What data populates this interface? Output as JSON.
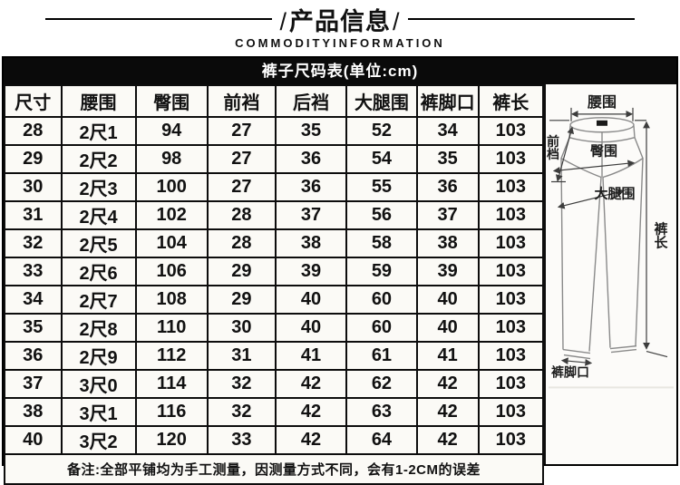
{
  "banner": {
    "slash": "/",
    "title": "产品信息",
    "subtitle": "COMMODITYINFORMATION"
  },
  "size_table": {
    "title": "裤子尺码表(单位:cm)",
    "columns": [
      "尺寸",
      "腰围",
      "臀围",
      "前裆",
      "后裆",
      "大腿围",
      "裤脚口",
      "裤长"
    ],
    "rows": [
      [
        "28",
        "2尺1",
        "94",
        "27",
        "35",
        "52",
        "34",
        "103"
      ],
      [
        "29",
        "2尺2",
        "98",
        "27",
        "36",
        "54",
        "35",
        "103"
      ],
      [
        "30",
        "2尺3",
        "100",
        "27",
        "36",
        "55",
        "36",
        "103"
      ],
      [
        "31",
        "2尺4",
        "102",
        "28",
        "37",
        "56",
        "37",
        "103"
      ],
      [
        "32",
        "2尺5",
        "104",
        "28",
        "38",
        "58",
        "38",
        "103"
      ],
      [
        "33",
        "2尺6",
        "106",
        "29",
        "39",
        "59",
        "39",
        "103"
      ],
      [
        "34",
        "2尺7",
        "108",
        "29",
        "40",
        "60",
        "40",
        "103"
      ],
      [
        "35",
        "2尺8",
        "110",
        "30",
        "40",
        "60",
        "40",
        "103"
      ],
      [
        "36",
        "2尺9",
        "112",
        "31",
        "41",
        "61",
        "41",
        "103"
      ],
      [
        "37",
        "3尺0",
        "114",
        "32",
        "42",
        "62",
        "42",
        "103"
      ],
      [
        "38",
        "3尺1",
        "116",
        "32",
        "42",
        "63",
        "42",
        "103"
      ],
      [
        "40",
        "3尺2",
        "120",
        "33",
        "42",
        "64",
        "42",
        "103"
      ]
    ],
    "note": "备注:全部平铺均为手工测量，因测量方式不同，会有1-2CM的误差"
  },
  "diagram": {
    "labels": {
      "waist": "腰围",
      "front_rise": "前档",
      "hip": "臀围",
      "thigh": "大腿围",
      "length": "裤长",
      "cuff": "裤脚口"
    }
  }
}
